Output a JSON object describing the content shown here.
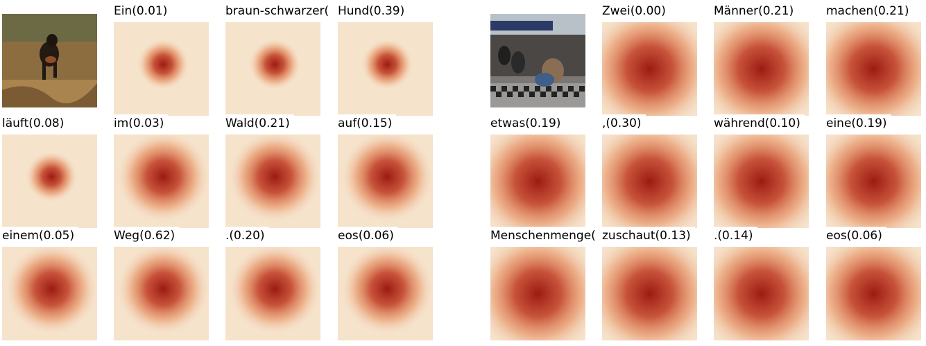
{
  "left_panel": {
    "words": [
      {
        "word": "Ein(0.01)",
        "peak": 0.25
      },
      {
        "word": "braun-schwarzer(",
        "peak": 0.28
      },
      {
        "word": "Hund(0.39)",
        "peak": 0.3
      },
      {
        "word": "läuft(0.08)",
        "peak": 0.3
      },
      {
        "word": "im(0.03)",
        "peak": 0.45
      },
      {
        "word": "Wald(0.21)",
        "peak": 0.5
      },
      {
        "word": "auf(0.15)",
        "peak": 0.5
      },
      {
        "word": "einem(0.05)",
        "peak": 0.55
      },
      {
        "word": "Weg(0.62)",
        "peak": 0.5
      },
      {
        "word": ".(0.20)",
        "peak": 0.55
      },
      {
        "word": "eos(0.06)",
        "peak": 0.5
      }
    ]
  },
  "right_panel": {
    "words": [
      {
        "word": "Zwei(0.00)",
        "peak": 0.6
      },
      {
        "word": "Männer(0.21)",
        "peak": 0.55
      },
      {
        "word": "machen(0.21)",
        "peak": 0.55
      },
      {
        "word": "etwas(0.19)",
        "peak": 0.7
      },
      {
        "word": ",(0.30)",
        "peak": 0.7
      },
      {
        "word": "während(0.10)",
        "peak": 0.7
      },
      {
        "word": "eine(0.19)",
        "peak": 0.7
      },
      {
        "word": "Menschenmenge(",
        "peak": 0.7
      },
      {
        "word": "zuschaut(0.13)",
        "peak": 0.7
      },
      {
        "word": ".(0.14)",
        "peak": 0.7
      },
      {
        "word": "eos(0.06)",
        "peak": 0.7
      }
    ]
  },
  "colors": {
    "heat_low": "#f6e3cc",
    "heat_mid": "#e3824f",
    "heat_high": "#9c1a12",
    "dog_photo_bg": "#8a6a3c",
    "street_photo_bg": "#6d6a68"
  }
}
